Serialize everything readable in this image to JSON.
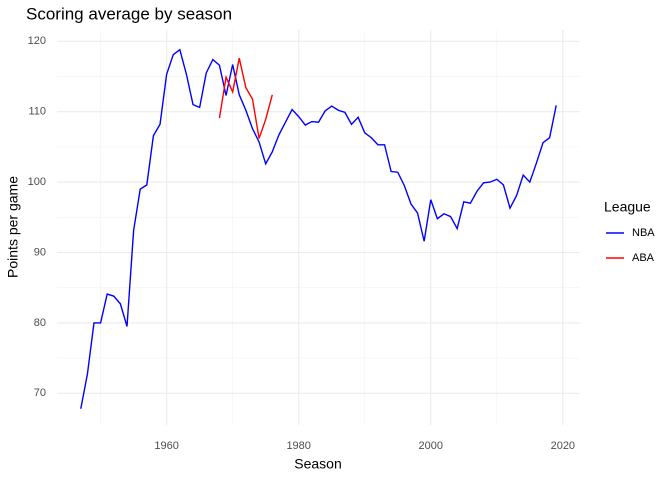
{
  "chart_data": {
    "type": "line",
    "title": "Scoring average by season",
    "x_label": "Season",
    "y_label": "Points per game",
    "legend_title": "League",
    "legend_position": "right",
    "xlim": [
      1943.4,
      2022.6
    ],
    "xticks": [
      1960,
      1980,
      2000,
      2020
    ],
    "ylim": [
      65.5,
      121.6
    ],
    "yticks": [
      70,
      80,
      90,
      100,
      110,
      120
    ],
    "grid": true,
    "minor_grid": true,
    "series": [
      {
        "name": "NBA",
        "color": "#0000ff",
        "x": [
          1947,
          1948,
          1949,
          1950,
          1951,
          1952,
          1953,
          1954,
          1955,
          1956,
          1957,
          1958,
          1959,
          1960,
          1961,
          1962,
          1963,
          1964,
          1965,
          1966,
          1967,
          1968,
          1969,
          1970,
          1971,
          1972,
          1973,
          1974,
          1975,
          1976,
          1977,
          1978,
          1979,
          1980,
          1981,
          1982,
          1983,
          1984,
          1985,
          1986,
          1987,
          1988,
          1989,
          1990,
          1991,
          1992,
          1993,
          1994,
          1995,
          1996,
          1997,
          1998,
          1999,
          2000,
          2001,
          2002,
          2003,
          2004,
          2005,
          2006,
          2007,
          2008,
          2009,
          2010,
          2011,
          2012,
          2013,
          2014,
          2015,
          2016,
          2017,
          2018,
          2019
        ],
        "values": [
          67.8,
          72.7,
          80.0,
          80.0,
          84.1,
          83.8,
          82.7,
          79.5,
          93.1,
          99.0,
          99.6,
          106.6,
          108.2,
          115.3,
          118.1,
          118.8,
          115.3,
          111.0,
          110.6,
          115.5,
          117.4,
          116.6,
          112.3,
          116.7,
          112.4,
          110.2,
          107.6,
          105.7,
          102.6,
          104.3,
          106.7,
          108.5,
          110.3,
          109.3,
          108.1,
          108.6,
          108.5,
          110.1,
          110.8,
          110.2,
          109.9,
          108.2,
          109.2,
          107.0,
          106.3,
          105.3,
          105.3,
          101.5,
          101.4,
          99.5,
          96.9,
          95.6,
          91.6,
          97.5,
          94.8,
          95.5,
          95.1,
          93.4,
          97.2,
          97.0,
          98.7,
          99.9,
          100.0,
          100.4,
          99.6,
          96.3,
          98.1,
          101.0,
          100.0,
          102.7,
          105.6,
          106.3,
          110.9
        ]
      },
      {
        "name": "ABA",
        "color": "#ff0000",
        "x": [
          1968,
          1969,
          1970,
          1971,
          1972,
          1973,
          1974,
          1975,
          1976
        ],
        "values": [
          109.1,
          114.9,
          112.8,
          117.6,
          113.4,
          111.8,
          106.2,
          108.9,
          112.4
        ]
      }
    ]
  }
}
